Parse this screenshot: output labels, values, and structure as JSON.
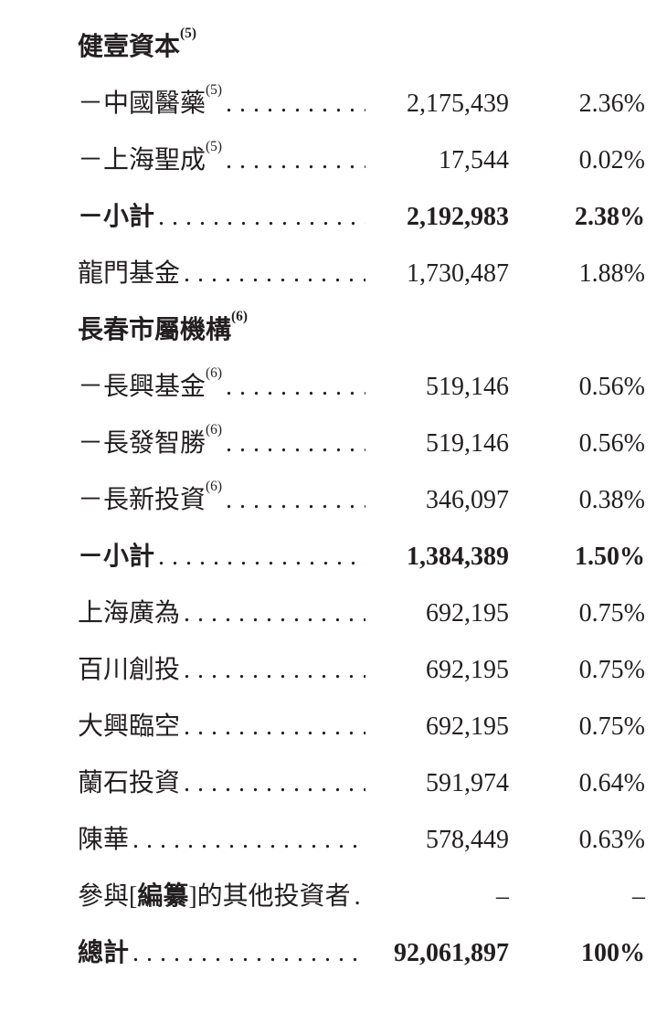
{
  "page": {
    "background_color": "#ffffff",
    "text_color": "#231f20",
    "description": "Shareholding table page from a Chinese prospectus-style document"
  },
  "table": {
    "columns": [
      "investor_name",
      "shares",
      "percentage"
    ],
    "rows": [
      {
        "kind": "section",
        "label": "健壹資本",
        "sup": "(5)"
      },
      {
        "kind": "item",
        "label": "－中國醫藥",
        "sup": "(5)",
        "shares": "2,175,439",
        "percent": "2.36%",
        "bold": false
      },
      {
        "kind": "item",
        "label": "－上海聖成",
        "sup": "(5)",
        "shares": "17,544",
        "percent": "0.02%",
        "bold": false
      },
      {
        "kind": "item",
        "label": "－小計",
        "shares": "2,192,983",
        "percent": "2.38%",
        "bold": true
      },
      {
        "kind": "item",
        "label": "龍門基金",
        "shares": "1,730,487",
        "percent": "1.88%",
        "bold": false
      },
      {
        "kind": "section",
        "label": "長春市屬機構",
        "sup": "(6)"
      },
      {
        "kind": "item",
        "label": "－長興基金",
        "sup": "(6)",
        "shares": "519,146",
        "percent": "0.56%",
        "bold": false
      },
      {
        "kind": "item",
        "label": "－長發智勝",
        "sup": "(6)",
        "shares": "519,146",
        "percent": "0.56%",
        "bold": false
      },
      {
        "kind": "item",
        "label": "－長新投資",
        "sup": "(6)",
        "shares": "346,097",
        "percent": "0.38%",
        "bold": false
      },
      {
        "kind": "item",
        "label": "－小計",
        "shares": "1,384,389",
        "percent": "1.50%",
        "bold": true
      },
      {
        "kind": "item",
        "label": "上海廣為",
        "shares": "692,195",
        "percent": "0.75%",
        "bold": false
      },
      {
        "kind": "item",
        "label": "百川創投",
        "shares": "692,195",
        "percent": "0.75%",
        "bold": false
      },
      {
        "kind": "item",
        "label": "大興臨空",
        "shares": "692,195",
        "percent": "0.75%",
        "bold": false
      },
      {
        "kind": "item",
        "label": "蘭石投資",
        "shares": "591,974",
        "percent": "0.64%",
        "bold": false
      },
      {
        "kind": "item",
        "label": "陳華",
        "shares": "578,449",
        "percent": "0.63%",
        "bold": false
      },
      {
        "kind": "item",
        "label_pre": "參與[",
        "label_em": "編纂",
        "label_post": "]的其他投資者",
        "shares": "–",
        "percent": "–",
        "bold": false
      },
      {
        "kind": "item",
        "label": "總計",
        "shares": "92,061,897",
        "percent": "100%",
        "bold": true
      }
    ]
  }
}
